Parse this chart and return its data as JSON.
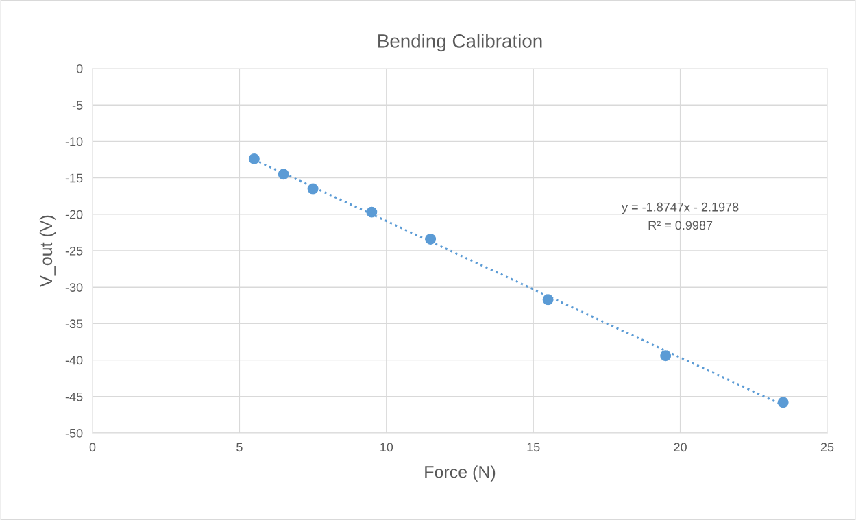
{
  "chart_data": {
    "type": "scatter",
    "title": "Bending Calibration",
    "xlabel": "Force (N)",
    "ylabel": "V_out (V)",
    "x": [
      5.5,
      6.5,
      7.5,
      9.5,
      11.5,
      15.5,
      19.5,
      23.5
    ],
    "series": [
      {
        "color": "#5b9bd5",
        "marker": "circle",
        "values": [
          -12.4,
          -14.5,
          -16.5,
          -19.7,
          -23.4,
          -31.7,
          -39.4,
          -45.8
        ]
      },
      {
        "type": "line",
        "color": "#5b9bd5",
        "line_style": "dotted",
        "marker": "none",
        "x": [
          5.5,
          23.5
        ],
        "values": [
          -12.5,
          -46.2
        ]
      }
    ],
    "annotations": [
      "y = -1.8747x - 2.1978",
      "R² = 0.9987"
    ],
    "xlim": [
      0,
      25
    ],
    "xticks": [
      0,
      5,
      10,
      15,
      20,
      25
    ],
    "ylim": [
      -50,
      0
    ],
    "yticks": [
      -50,
      -45,
      -40,
      -35,
      -30,
      -25,
      -20,
      -15,
      -10,
      -5,
      0
    ],
    "grid": true,
    "legend": false
  }
}
